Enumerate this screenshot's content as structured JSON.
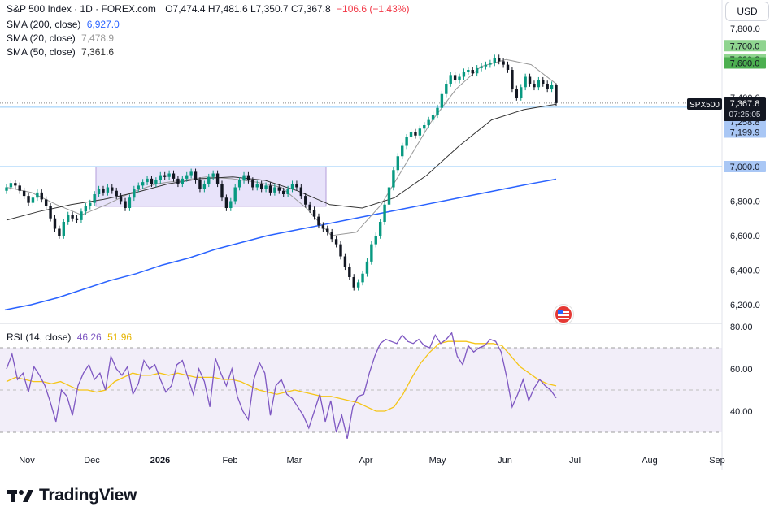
{
  "header": {
    "symbol_line": "S&P 500 Index · 1D · FOREX.com",
    "ohlc": "O7,474.4  H7,481.6  L7,350.7  C7,367.8",
    "change": "−106.6 (−1.43%)",
    "sma200_label": "SMA (200, close)",
    "sma200_value": "6,927.0",
    "sma20_label": "SMA (20, close)",
    "sma20_value": "7,478.9",
    "sma50_label": "SMA (50, close)",
    "sma50_value": "7,361.6",
    "currency_button": "USD"
  },
  "rsi_header": {
    "label": "RSI (14, close)",
    "value1": "46.26",
    "value2": "51.96"
  },
  "price_axis_labels": [
    "7,800.0",
    "7,400.0",
    "6,800.0",
    "6,600.0",
    "6,400.0",
    "6,200.0"
  ],
  "rsi_axis_labels": [
    "80.00",
    "60.00",
    "40.00"
  ],
  "time_axis_labels": [
    "Nov",
    "Dec",
    "2026",
    "Feb",
    "Mar",
    "Apr",
    "May",
    "Jun",
    "Jul",
    "Aug",
    "Sep"
  ],
  "price_tags": [
    {
      "text": "7,700.0",
      "color": "#8fd48f"
    },
    {
      "text": "7,620.8",
      "color": "#8fd48f"
    },
    {
      "text": "7,600.0",
      "color": "#4caf50"
    },
    {
      "text": "7,344.2",
      "color": "#a9c7f5"
    },
    {
      "text": "7,258.8",
      "color": "#a9c7f5"
    },
    {
      "text": "7,199.9",
      "color": "#a9c7f5"
    },
    {
      "text": "7,000.0",
      "color": "#a9c7f5"
    }
  ],
  "symbol_tag": {
    "name": "SPX500",
    "price": "7,367.8",
    "countdown": "07:25:05"
  },
  "brand": "TradingView",
  "colors": {
    "up": "#089981",
    "down": "#131722",
    "sma200": "#2962ff",
    "sma20": "#999999",
    "sma50": "#333333",
    "rsi": "#7e57c2",
    "rsi_ma": "#f5c518",
    "resistance": "#4caf50",
    "support": "#90caf9",
    "range_box": "#c5b8ef"
  },
  "chart_data": {
    "type": "candlestick",
    "symbol": "S&P 500 Index",
    "interval": "1D",
    "last": {
      "open": 7474.4,
      "high": 7481.6,
      "low": 7350.7,
      "close": 7367.8,
      "change": -106.6,
      "change_pct": -1.43
    },
    "ylim": [
      6150,
      7850
    ],
    "horizontal_levels": [
      7600.0,
      7344.2,
      7000.0
    ],
    "range_box_price": [
      6770,
      7000
    ],
    "closes": [
      6880,
      6905,
      6890,
      6860,
      6830,
      6790,
      6820,
      6850,
      6810,
      6770,
      6700,
      6640,
      6600,
      6680,
      6720,
      6700,
      6690,
      6740,
      6770,
      6790,
      6840,
      6870,
      6850,
      6880,
      6860,
      6830,
      6800,
      6760,
      6820,
      6870,
      6890,
      6910,
      6930,
      6900,
      6920,
      6950,
      6940,
      6960,
      6930,
      6900,
      6930,
      6950,
      6970,
      6920,
      6870,
      6900,
      6940,
      6960,
      6900,
      6820,
      6760,
      6800,
      6880,
      6920,
      6950,
      6920,
      6880,
      6900,
      6870,
      6890,
      6850,
      6880,
      6860,
      6840,
      6870,
      6900,
      6880,
      6830,
      6780,
      6750,
      6710,
      6660,
      6640,
      6620,
      6580,
      6550,
      6480,
      6420,
      6360,
      6300,
      6330,
      6380,
      6450,
      6550,
      6600,
      6680,
      6780,
      6880,
      6980,
      7060,
      7120,
      7170,
      7200,
      7180,
      7220,
      7240,
      7270,
      7300,
      7340,
      7420,
      7480,
      7530,
      7500,
      7520,
      7550,
      7560,
      7540,
      7570,
      7580,
      7590,
      7600,
      7630,
      7610,
      7590,
      7560,
      7450,
      7400,
      7460,
      7520,
      7480,
      7460,
      7500,
      7480,
      7450,
      7474.4,
      7367.8
    ],
    "sma200": [
      6170,
      6200,
      6240,
      6290,
      6340,
      6380,
      6430,
      6470,
      6520,
      6560,
      6600,
      6630,
      6660,
      6690,
      6720,
      6750,
      6780,
      6810,
      6840,
      6870,
      6900,
      6927
    ],
    "sma20": [
      6880,
      6850,
      6780,
      6720,
      6780,
      6850,
      6900,
      6920,
      6940,
      6930,
      6910,
      6880,
      6760,
      6600,
      6620,
      6780,
      7020,
      7260,
      7450,
      7580,
      7620,
      7590,
      7478.9
    ],
    "sma50": [
      6690,
      6740,
      6780,
      6810,
      6850,
      6900,
      6930,
      6940,
      6920,
      6860,
      6780,
      6760,
      6820,
      6950,
      7120,
      7270,
      7330,
      7361.6
    ],
    "rsi_ylim": [
      25,
      80
    ],
    "rsi_bands": [
      70,
      30
    ],
    "rsi": [
      60,
      67,
      55,
      58,
      49,
      61,
      57,
      52,
      44,
      35,
      50,
      47,
      38,
      52,
      58,
      62,
      55,
      58,
      50,
      66,
      60,
      57,
      61,
      48,
      53,
      64,
      60,
      62,
      55,
      49,
      52,
      62,
      64,
      56,
      48,
      60,
      54,
      42,
      65,
      58,
      52,
      60,
      47,
      40,
      36,
      55,
      63,
      58,
      38,
      52,
      55,
      48,
      46,
      42,
      38,
      32,
      40,
      48,
      35,
      45,
      30,
      38,
      27,
      42,
      47,
      48,
      58,
      66,
      72,
      74,
      73,
      72,
      76,
      73,
      72,
      74,
      71,
      70,
      76,
      72,
      74,
      77,
      66,
      62,
      71,
      68,
      70,
      71,
      74,
      73,
      68,
      56,
      42,
      48,
      55,
      45,
      51,
      55,
      52,
      50,
      46.26
    ],
    "rsi_ma": [
      54,
      56,
      55,
      54,
      54,
      53,
      54,
      52,
      50,
      50,
      49,
      50,
      54,
      56,
      58,
      57,
      57,
      58,
      57,
      58,
      57,
      56,
      56,
      56,
      55,
      55,
      54,
      52,
      50,
      49,
      48,
      49,
      50,
      49,
      48,
      47,
      47,
      46,
      45,
      44,
      42,
      40,
      40,
      42,
      48,
      56,
      63,
      68,
      72,
      73,
      73,
      73,
      72,
      72,
      72,
      71,
      66,
      61,
      58,
      55,
      53,
      51.96
    ]
  }
}
